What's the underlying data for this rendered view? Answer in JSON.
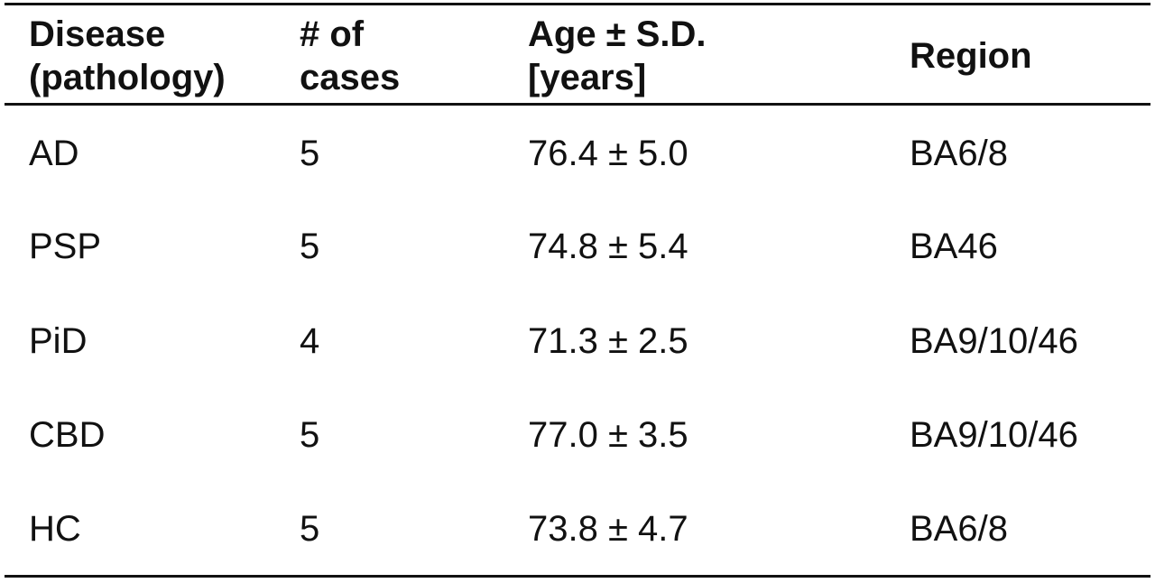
{
  "table": {
    "headers": [
      {
        "lines": [
          "Disease",
          "(pathology)"
        ]
      },
      {
        "lines": [
          "# of",
          "cases"
        ]
      },
      {
        "lines": [
          "Age ± S.D.",
          "[years]"
        ]
      },
      {
        "lines": [
          "Region"
        ]
      }
    ],
    "rows": [
      {
        "disease": "AD",
        "cases": "5",
        "age": "76.4 ± 5.0",
        "region": "BA6/8"
      },
      {
        "disease": "PSP",
        "cases": "5",
        "age": "74.8 ± 5.4",
        "region": "BA46"
      },
      {
        "disease": "PiD",
        "cases": "4",
        "age": "71.3 ± 2.5",
        "region": "BA9/10/46"
      },
      {
        "disease": "CBD",
        "cases": "5",
        "age": "77.0 ± 3.5",
        "region": "BA9/10/46"
      },
      {
        "disease": "HC",
        "cases": "5",
        "age": "73.8 ± 4.7",
        "region": "BA6/8"
      }
    ]
  }
}
